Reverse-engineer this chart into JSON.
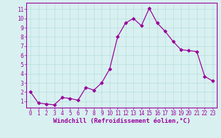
{
  "x": [
    0,
    1,
    2,
    3,
    4,
    5,
    6,
    7,
    8,
    9,
    10,
    11,
    12,
    13,
    14,
    15,
    16,
    17,
    18,
    19,
    20,
    21,
    22,
    23
  ],
  "y": [
    2.0,
    0.8,
    0.7,
    0.6,
    1.4,
    1.3,
    1.1,
    2.5,
    2.2,
    3.0,
    4.5,
    8.0,
    9.5,
    10.0,
    9.2,
    11.1,
    9.5,
    8.6,
    7.5,
    6.6,
    6.5,
    6.4,
    3.7,
    3.2
  ],
  "line_color": "#990099",
  "marker": "D",
  "marker_size": 2.5,
  "background_color": "#d8f0f0",
  "grid_color": "#b8dede",
  "xlabel": "Windchill (Refroidissement éolien,°C)",
  "ylabel_ticks": [
    1,
    2,
    3,
    4,
    5,
    6,
    7,
    8,
    9,
    10,
    11
  ],
  "xlabel_ticks": [
    0,
    1,
    2,
    3,
    4,
    5,
    6,
    7,
    8,
    9,
    10,
    11,
    12,
    13,
    14,
    15,
    16,
    17,
    18,
    19,
    20,
    21,
    22,
    23
  ],
  "xlim": [
    -0.5,
    23.5
  ],
  "ylim": [
    0.3,
    11.7
  ],
  "tick_label_color": "#990099",
  "tick_label_fontsize": 5.5,
  "xlabel_fontsize": 6.5,
  "axis_border_color": "#990099",
  "linewidth": 0.9
}
